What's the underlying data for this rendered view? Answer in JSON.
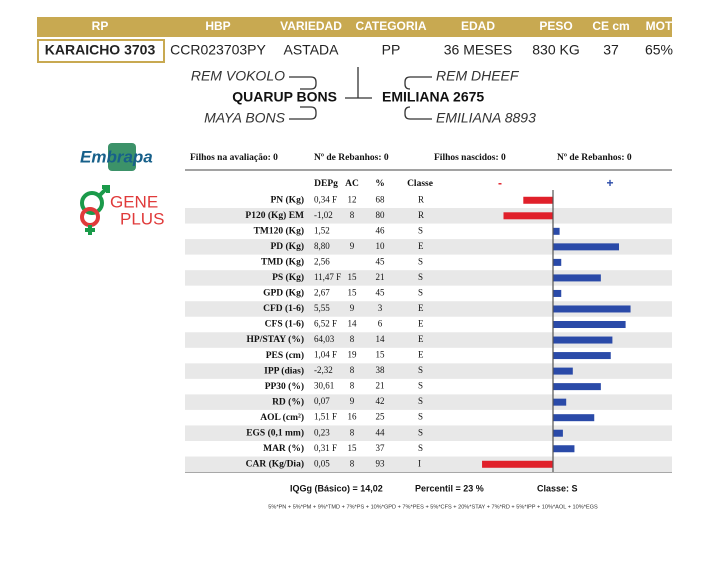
{
  "header": {
    "columns": [
      "RP",
      "HBP",
      "VARIEDAD",
      "CATEGORIA",
      "EDAD",
      "PESO",
      "CE cm",
      "MOT"
    ],
    "values": [
      "KARAICHO 3703",
      "CCR023703PY",
      "ASTADA",
      "PP",
      "36 MESES",
      "830 KG",
      "37",
      "65%"
    ]
  },
  "pedigree": {
    "sire_sire": "REM VOKOLO",
    "sire": "QUARUP BONS",
    "sire_dam": "MAYA BONS",
    "dam_sire": "REM DHEEF",
    "dam": "EMILIANA 2675",
    "dam_dam": "EMILIANA 8893"
  },
  "logos": {
    "embrapa": "Embrapa",
    "geneplus_1": "GENE",
    "geneplus_2": "PLUS"
  },
  "evaluation": {
    "info": [
      "Filhos na avaliação: 0",
      "Nº de Rebanhos: 0",
      "Filhos nascidos: 0",
      "Nº de Rebanhos: 0"
    ],
    "columns": [
      "DEPg",
      "AC",
      "%",
      "Classe"
    ],
    "scale": [
      "-",
      "+"
    ],
    "rows": [
      {
        "trait": "PN (Kg)",
        "dep": "0,34 F",
        "ac": 12,
        "pct": 68,
        "class": "R"
      },
      {
        "trait": "P120 (Kg) EM",
        "dep": "-1,02",
        "ac": 8,
        "pct": 80,
        "class": "R"
      },
      {
        "trait": "TM120 (Kg)",
        "dep": "1,52",
        "ac": null,
        "pct": 46,
        "class": "S"
      },
      {
        "trait": "PD (Kg)",
        "dep": "8,80",
        "ac": 9,
        "pct": 10,
        "class": "E"
      },
      {
        "trait": "TMD (Kg)",
        "dep": "2,56",
        "ac": null,
        "pct": 45,
        "class": "S"
      },
      {
        "trait": "PS (Kg)",
        "dep": "11,47 F",
        "ac": 15,
        "pct": 21,
        "class": "S"
      },
      {
        "trait": "GPD (Kg)",
        "dep": "2,67",
        "ac": 15,
        "pct": 45,
        "class": "S"
      },
      {
        "trait": "CFD (1-6)",
        "dep": "5,55",
        "ac": 9,
        "pct": 3,
        "class": "E"
      },
      {
        "trait": "CFS (1-6)",
        "dep": "6,52 F",
        "ac": 14,
        "pct": 6,
        "class": "E"
      },
      {
        "trait": "HP/STAY (%)",
        "dep": "64,03",
        "ac": 8,
        "pct": 14,
        "class": "E"
      },
      {
        "trait": "PES (cm)",
        "dep": "1,04 F",
        "ac": 19,
        "pct": 15,
        "class": "E"
      },
      {
        "trait": "IPP (dias)",
        "dep": "-2,32",
        "ac": 8,
        "pct": 38,
        "class": "S"
      },
      {
        "trait": "PP30 (%)",
        "dep": "30,61",
        "ac": 8,
        "pct": 21,
        "class": "S"
      },
      {
        "trait": "RD (%)",
        "dep": "0,07",
        "ac": 9,
        "pct": 42,
        "class": "S"
      },
      {
        "trait": "AOL (cm²)",
        "dep": "1,51 F",
        "ac": 16,
        "pct": 25,
        "class": "S"
      },
      {
        "trait": "EGS (0,1 mm)",
        "dep": "0,23",
        "ac": 8,
        "pct": 44,
        "class": "S"
      },
      {
        "trait": "MAR (%)",
        "dep": "0,31 F",
        "ac": 15,
        "pct": 37,
        "class": "S"
      },
      {
        "trait": "CAR (Kg/Dia)",
        "dep": "0,05",
        "ac": 8,
        "pct": 93,
        "class": "I"
      }
    ]
  },
  "summary": {
    "iqg": "IQGg (Básico) = 14,02",
    "percentil": "Percentil = 23 %",
    "classe": "Classe: S",
    "formula": "5%*PN + 5%*PM + 9%*TMD + 7%*PS + 10%*GPD + 7%*PES + 5%*CFS + 20%*STAY + 7%*RD + 5%*IPP + 10%*AOL + 10%*EGS"
  }
}
